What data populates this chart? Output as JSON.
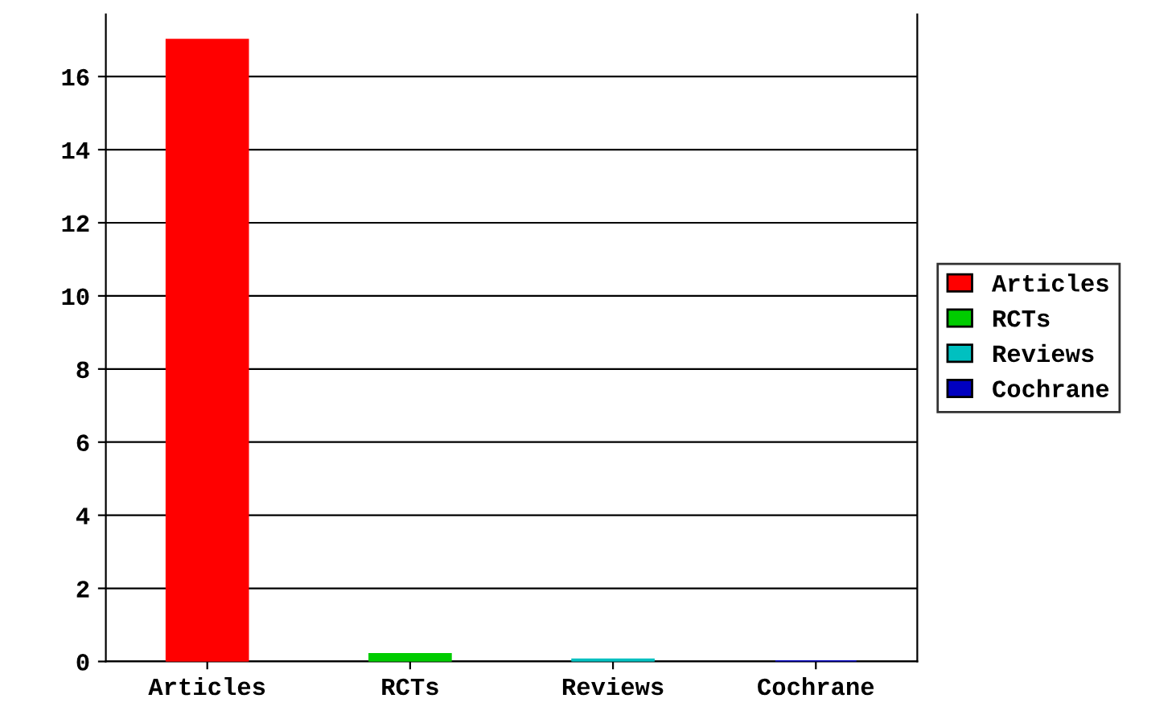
{
  "chart_data": {
    "type": "bar",
    "categories": [
      "Articles",
      "RCTs",
      "Reviews",
      "Cochrane"
    ],
    "series": [
      {
        "name": "Articles",
        "color": "#ff0000",
        "values": [
          17,
          null,
          null,
          null
        ]
      },
      {
        "name": "RCTs",
        "color": "#00cc00",
        "values": [
          null,
          0.2,
          null,
          null
        ]
      },
      {
        "name": "Reviews",
        "color": "#00c0c0",
        "values": [
          null,
          null,
          0.05,
          null
        ]
      },
      {
        "name": "Cochrane",
        "color": "#0000c0",
        "values": [
          null,
          null,
          null,
          0
        ]
      }
    ],
    "ylim": [
      0,
      17.7
    ],
    "yticks": [
      0,
      2,
      4,
      6,
      8,
      10,
      12,
      14,
      16
    ],
    "grid": "y",
    "legend": "right"
  }
}
